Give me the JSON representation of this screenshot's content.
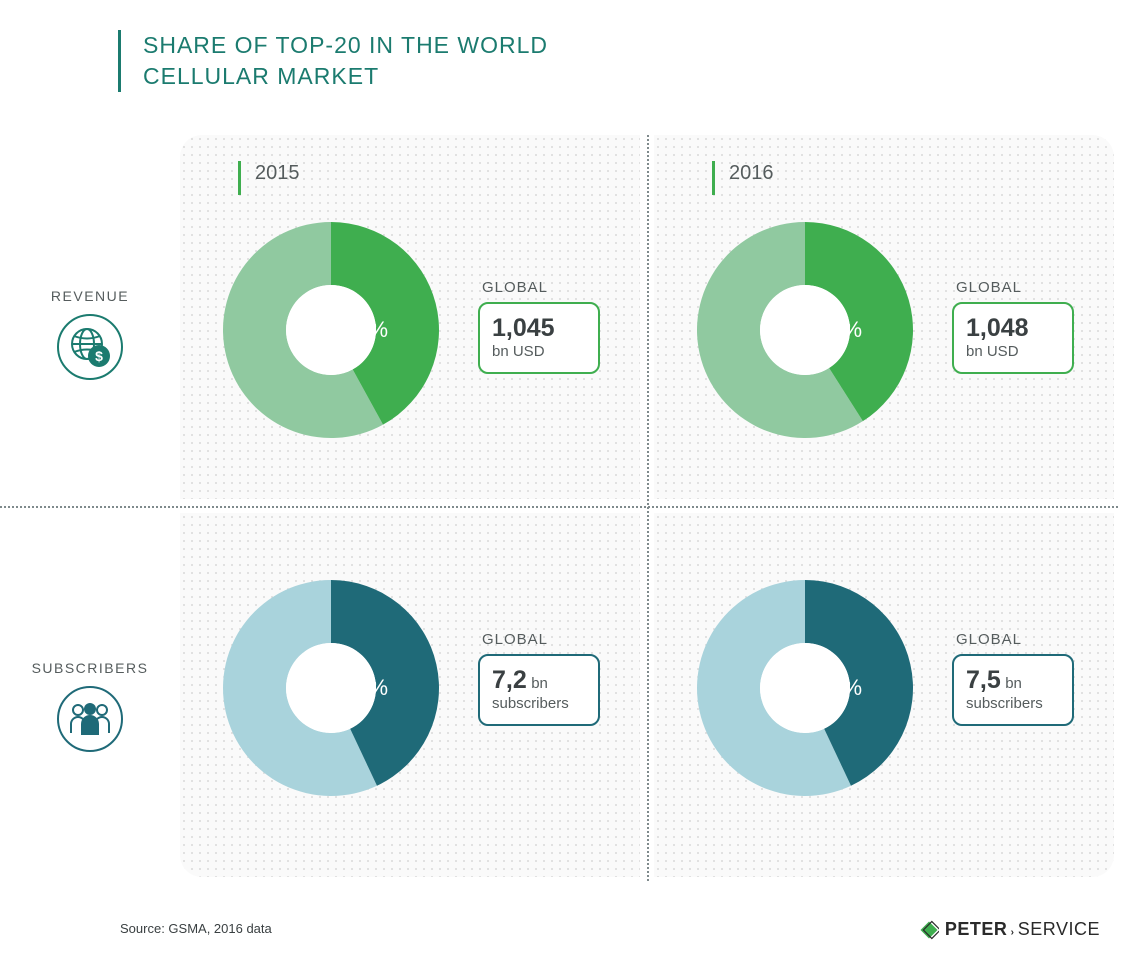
{
  "title_line1": "SHARE OF TOP-20 IN THE WORLD",
  "title_line2": "CELLULAR MARKET",
  "title_color": "#1b7b6f",
  "background_color": "#ffffff",
  "panel_bg": "#fafafa",
  "dot_grid_color": "#d9d9d9",
  "divider_color": "#7f8a8c",
  "rows": {
    "revenue": {
      "label": "REVENUE",
      "icon": "globe-dollar",
      "accent_color": "#3fae4f",
      "light_color": "#90c9a0",
      "icon_border": "#1b7b6f"
    },
    "subscribers": {
      "label": "SUBSCRIBERS",
      "icon": "people",
      "accent_color": "#1f6a78",
      "light_color": "#a9d3dc",
      "icon_border": "#1f6a78"
    }
  },
  "columns": {
    "2015": {
      "label": "2015"
    },
    "2016": {
      "label": "2016"
    }
  },
  "donuts": {
    "revenue_2015": {
      "pct": 42,
      "pct_label": "42%",
      "year_bar_color": "#3fae4f"
    },
    "revenue_2016": {
      "pct": 41,
      "pct_label": "41%",
      "year_bar_color": "#3fae4f"
    },
    "subs_2015": {
      "pct": 43,
      "pct_label": "43%",
      "year_bar_color": "#1f6a78"
    },
    "subs_2016": {
      "pct": 43,
      "pct_label": "43%",
      "year_bar_color": "#1f6a78"
    }
  },
  "global_boxes": {
    "revenue_2015": {
      "title": "GLOBAL",
      "value": "1,045",
      "unit": "bn USD",
      "border": "#3fae4f"
    },
    "revenue_2016": {
      "title": "GLOBAL",
      "value": "1,048",
      "unit": "bn USD",
      "border": "#3fae4f"
    },
    "subs_2015": {
      "title": "GLOBAL",
      "value": "7,2",
      "unit_inline": "bn",
      "unit_below": "subscribers",
      "border": "#1f6a78"
    },
    "subs_2016": {
      "title": "GLOBAL",
      "value": "7,5",
      "unit_inline": "bn",
      "unit_below": "subscribers",
      "border": "#1f6a78"
    }
  },
  "donut_style": {
    "outer_r": 108,
    "inner_r": 45,
    "pct_fontsize": 22,
    "pct_color": "#ffffff"
  },
  "source": "Source: GSMA, 2016 data",
  "logo": {
    "left": "PETER",
    "right": "SERVICE",
    "diamond_color": "#3fae4f"
  }
}
